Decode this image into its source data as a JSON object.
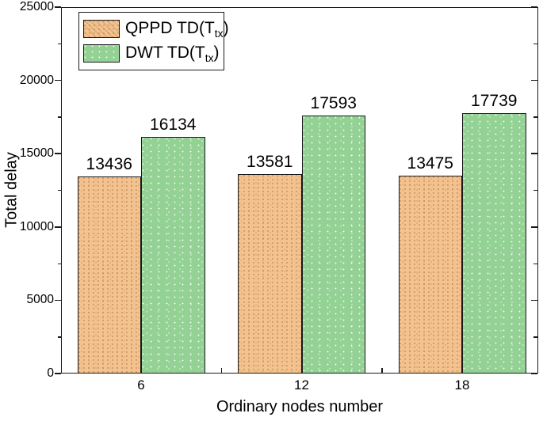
{
  "chart_data": {
    "type": "bar",
    "title": "",
    "xlabel": "Ordinary nodes number",
    "ylabel": "Total delay",
    "categories": [
      "6",
      "12",
      "18"
    ],
    "series": [
      {
        "name_pre": "QPPD TD(T",
        "name_sub": "tx",
        "name_post": ")",
        "color": "#F3C28E",
        "border_color": "#1a1a1a",
        "values": [
          13436,
          13581,
          13475
        ]
      },
      {
        "name_pre": "DWT TD(T",
        "name_sub": "tx",
        "name_post": ")",
        "color": "#93D294",
        "border_color": "#1a1a1a",
        "values": [
          16134,
          17593,
          17739
        ]
      }
    ],
    "ylim": [
      0,
      25000
    ],
    "yticks": [
      0,
      5000,
      10000,
      15000,
      20000,
      25000
    ],
    "y_minor_step": 2500,
    "value_labels_shown": true,
    "legend_position": "top-left",
    "grid": false,
    "axis_color": "#1a1a1a",
    "background_color": "#ffffff"
  }
}
